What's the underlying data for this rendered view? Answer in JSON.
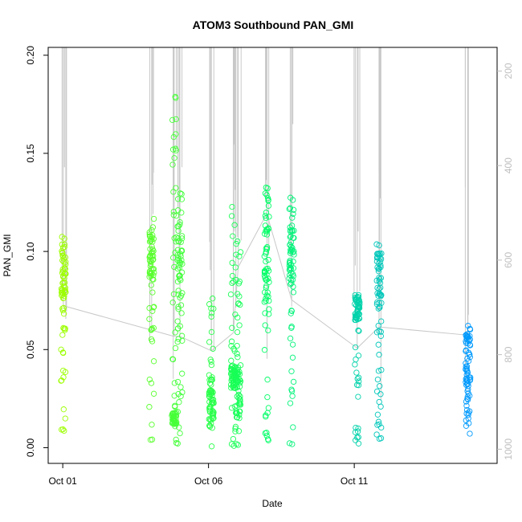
{
  "chart_data": {
    "type": "scatter",
    "title": "ATOM3 Southbound PAN_GMI",
    "xlabel": "Date",
    "ylabel": "PAN_GMI",
    "x_unit": "days in October (day-of-month)",
    "xlim": [
      30.5,
      15.9
    ],
    "xlim_note": "",
    "x_range": [
      0.5,
      15.9
    ],
    "ylim": [
      -0.008,
      0.204
    ],
    "y_ticks": [
      "0.00",
      "0.05",
      "0.10",
      "0.15",
      "0.20"
    ],
    "x_ticks": [
      {
        "day": 1,
        "label": "Oct 01"
      },
      {
        "day": 6,
        "label": "Oct 06"
      },
      {
        "day": 11,
        "label": "Oct 11"
      }
    ],
    "y2_ticks": [
      "200",
      "400",
      "600",
      "800",
      "1000"
    ],
    "y2_range": [
      1030,
      150
    ],
    "colors": {
      "point_start": "#9cff00",
      "point_mid": "#00ff66",
      "point_end": "#0099ff",
      "altitude_line": "#c8c8c8",
      "right_axis": "#bfbfbf"
    },
    "series": [
      {
        "segments": [
          {
            "day": 1.02,
            "ymin": 0.006,
            "ymax": 0.11,
            "dense": [
              0.076,
              0.108
            ]
          },
          {
            "day": 4.05,
            "ymin": 0.002,
            "ymax": 0.121,
            "dense": [
              0.085,
              0.112
            ]
          },
          {
            "day": 4.82,
            "ymin": 0.0,
            "ymax": 0.199,
            "dense": [
              0.012,
              0.018
            ]
          },
          {
            "day": 5.02,
            "ymin": 0.0,
            "ymax": 0.135,
            "dense": [
              0.06,
              0.12
            ]
          },
          {
            "day": 6.1,
            "ymin": 0.0,
            "ymax": 0.079,
            "dense": [
              0.01,
              0.03
            ]
          },
          {
            "day": 6.85,
            "ymin": 0.0,
            "ymax": 0.125,
            "dense": [
              0.03,
              0.042
            ]
          },
          {
            "day": 7.02,
            "ymin": 0.0,
            "ymax": 0.11,
            "dense": [
              0.015,
              0.04
            ]
          },
          {
            "day": 8.0,
            "ymin": 0.002,
            "ymax": 0.139,
            "dense": [
              0.068,
              0.128
            ]
          },
          {
            "day": 8.85,
            "ymin": 0.0,
            "ymax": 0.129,
            "dense": [
              0.085,
              0.115
            ]
          },
          {
            "day": 11.1,
            "ymin": 0.001,
            "ymax": 0.079,
            "dense": [
              0.065,
              0.077
            ]
          },
          {
            "day": 11.85,
            "ymin": 0.0,
            "ymax": 0.106,
            "dense": [
              0.07,
              0.1
            ]
          },
          {
            "day": 14.9,
            "ymin": 0.007,
            "ymax": 0.063,
            "dense": [
              0.008,
              0.058
            ]
          }
        ]
      }
    ]
  }
}
